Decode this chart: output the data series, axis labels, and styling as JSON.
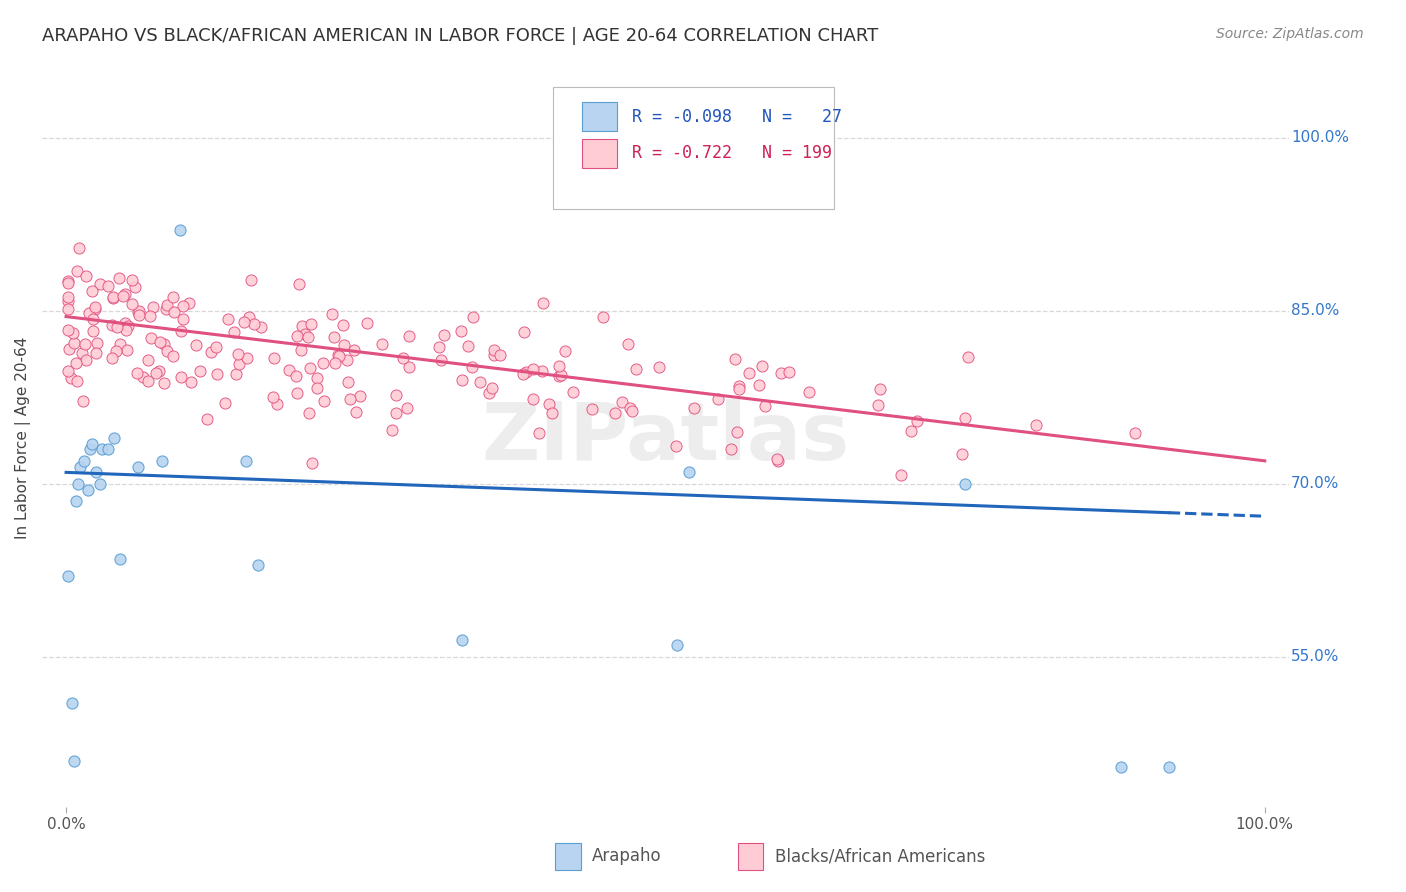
{
  "title": "ARAPAHO VS BLACK/AFRICAN AMERICAN IN LABOR FORCE | AGE 20-64 CORRELATION CHART",
  "source": "Source: ZipAtlas.com",
  "ylabel": "In Labor Force | Age 20-64",
  "xlim": [
    -0.02,
    1.02
  ],
  "ylim": [
    0.42,
    1.06
  ],
  "ytick_vals": [
    0.55,
    0.7,
    0.85,
    1.0
  ],
  "ytick_labels": [
    "55.0%",
    "70.0%",
    "85.0%",
    "100.0%"
  ],
  "xtick_vals": [
    0.0,
    1.0
  ],
  "xtick_labels": [
    "0.0%",
    "100.0%"
  ],
  "background_color": "#ffffff",
  "grid_color": "#d8d8d8",
  "arapaho_face": "#b8d4f0",
  "arapaho_edge": "#5a9fd4",
  "black_face": "#ffccd5",
  "black_edge": "#e05080",
  "line_blue": "#2266bb",
  "line_pink": "#e05080",
  "R_arapaho": -0.098,
  "N_arapaho": 27,
  "R_black": -0.722,
  "N_black": 199,
  "watermark": "ZIPatlas",
  "title_fontsize": 13,
  "axis_label_fontsize": 11,
  "tick_fontsize": 11,
  "legend_fontsize": 12,
  "source_fontsize": 10,
  "marker_size": 8,
  "line_width": 2.2
}
